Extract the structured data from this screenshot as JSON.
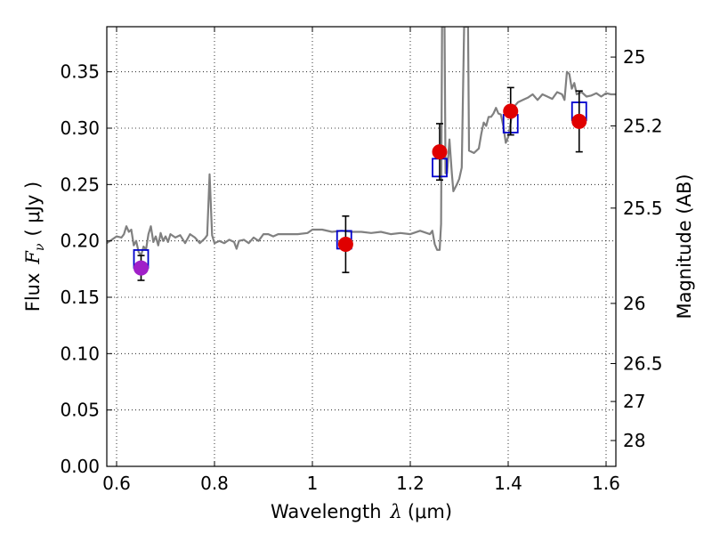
{
  "chart_data": {
    "type": "scatter",
    "xlabel": {
      "prefix": "Wavelength",
      "symbol": "λ",
      "unit": "(μm)"
    },
    "ylabel": {
      "prefix": "Flux",
      "symbol": "F",
      "sub": "ν",
      "unit": "( μJy )"
    },
    "ylabel_right": "Magnitude (AB)",
    "xlim": [
      0.58,
      1.62
    ],
    "ylim": [
      0.0,
      0.39
    ],
    "grid": true,
    "x_ticks": [
      {
        "v": 0.6,
        "label": "0.6"
      },
      {
        "v": 0.8,
        "label": "0.8"
      },
      {
        "v": 1.0,
        "label": "1"
      },
      {
        "v": 1.2,
        "label": "1.2"
      },
      {
        "v": 1.4,
        "label": "1.4"
      },
      {
        "v": 1.6,
        "label": "1.6"
      }
    ],
    "y_ticks": [
      {
        "v": 0.0,
        "label": "0.00"
      },
      {
        "v": 0.05,
        "label": "0.05"
      },
      {
        "v": 0.1,
        "label": "0.10"
      },
      {
        "v": 0.15,
        "label": "0.15"
      },
      {
        "v": 0.2,
        "label": "0.20"
      },
      {
        "v": 0.25,
        "label": "0.25"
      },
      {
        "v": 0.3,
        "label": "0.30"
      },
      {
        "v": 0.35,
        "label": "0.35"
      }
    ],
    "right_ticks": [
      {
        "mag": 25,
        "label": "25"
      },
      {
        "mag": 25.2,
        "label": "25.2"
      },
      {
        "mag": 25.5,
        "label": "25.5"
      },
      {
        "mag": 26,
        "label": "26"
      },
      {
        "mag": 26.5,
        "label": "26.5"
      },
      {
        "mag": 27,
        "label": "27"
      },
      {
        "mag": 28,
        "label": "28"
      }
    ],
    "spectrum": {
      "color": "#808080",
      "points": [
        [
          0.58,
          0.198
        ],
        [
          0.59,
          0.201
        ],
        [
          0.6,
          0.204
        ],
        [
          0.61,
          0.203
        ],
        [
          0.615,
          0.206
        ],
        [
          0.62,
          0.213
        ],
        [
          0.625,
          0.208
        ],
        [
          0.63,
          0.21
        ],
        [
          0.635,
          0.196
        ],
        [
          0.64,
          0.2
        ],
        [
          0.645,
          0.19
        ],
        [
          0.65,
          0.187
        ],
        [
          0.655,
          0.195
        ],
        [
          0.66,
          0.192
        ],
        [
          0.665,
          0.206
        ],
        [
          0.67,
          0.213
        ],
        [
          0.675,
          0.199
        ],
        [
          0.68,
          0.204
        ],
        [
          0.685,
          0.196
        ],
        [
          0.69,
          0.207
        ],
        [
          0.695,
          0.2
        ],
        [
          0.7,
          0.204
        ],
        [
          0.705,
          0.199
        ],
        [
          0.71,
          0.206
        ],
        [
          0.72,
          0.203
        ],
        [
          0.73,
          0.205
        ],
        [
          0.74,
          0.198
        ],
        [
          0.75,
          0.206
        ],
        [
          0.76,
          0.203
        ],
        [
          0.77,
          0.198
        ],
        [
          0.78,
          0.202
        ],
        [
          0.785,
          0.205
        ],
        [
          0.79,
          0.259
        ],
        [
          0.795,
          0.205
        ],
        [
          0.8,
          0.198
        ],
        [
          0.81,
          0.2
        ],
        [
          0.82,
          0.198
        ],
        [
          0.83,
          0.201
        ],
        [
          0.84,
          0.199
        ],
        [
          0.845,
          0.193
        ],
        [
          0.85,
          0.2
        ],
        [
          0.86,
          0.201
        ],
        [
          0.87,
          0.198
        ],
        [
          0.88,
          0.203
        ],
        [
          0.89,
          0.2
        ],
        [
          0.9,
          0.206
        ],
        [
          0.91,
          0.206
        ],
        [
          0.92,
          0.204
        ],
        [
          0.93,
          0.206
        ],
        [
          0.95,
          0.206
        ],
        [
          0.97,
          0.206
        ],
        [
          0.99,
          0.207
        ],
        [
          1.0,
          0.21
        ],
        [
          1.02,
          0.21
        ],
        [
          1.04,
          0.208
        ],
        [
          1.06,
          0.209
        ],
        [
          1.08,
          0.208
        ],
        [
          1.1,
          0.208
        ],
        [
          1.12,
          0.207
        ],
        [
          1.14,
          0.208
        ],
        [
          1.16,
          0.206
        ],
        [
          1.18,
          0.207
        ],
        [
          1.2,
          0.206
        ],
        [
          1.22,
          0.209
        ],
        [
          1.24,
          0.206
        ],
        [
          1.245,
          0.209
        ],
        [
          1.25,
          0.197
        ],
        [
          1.255,
          0.192
        ],
        [
          1.26,
          0.192
        ],
        [
          1.263,
          0.215
        ],
        [
          1.265,
          0.39
        ],
        [
          1.27,
          0.39
        ],
        [
          1.272,
          0.26
        ],
        [
          1.275,
          0.26
        ],
        [
          1.28,
          0.29
        ],
        [
          1.285,
          0.26
        ],
        [
          1.288,
          0.244
        ],
        [
          1.295,
          0.25
        ],
        [
          1.3,
          0.255
        ],
        [
          1.305,
          0.265
        ],
        [
          1.31,
          0.39
        ],
        [
          1.318,
          0.39
        ],
        [
          1.32,
          0.28
        ],
        [
          1.33,
          0.278
        ],
        [
          1.34,
          0.282
        ],
        [
          1.345,
          0.295
        ],
        [
          1.35,
          0.305
        ],
        [
          1.355,
          0.302
        ],
        [
          1.36,
          0.31
        ],
        [
          1.365,
          0.31
        ],
        [
          1.37,
          0.313
        ],
        [
          1.375,
          0.318
        ],
        [
          1.38,
          0.313
        ],
        [
          1.385,
          0.312
        ],
        [
          1.39,
          0.302
        ],
        [
          1.395,
          0.287
        ],
        [
          1.4,
          0.292
        ],
        [
          1.405,
          0.305
        ],
        [
          1.41,
          0.318
        ],
        [
          1.42,
          0.323
        ],
        [
          1.43,
          0.325
        ],
        [
          1.44,
          0.327
        ],
        [
          1.45,
          0.33
        ],
        [
          1.46,
          0.325
        ],
        [
          1.47,
          0.33
        ],
        [
          1.48,
          0.328
        ],
        [
          1.49,
          0.326
        ],
        [
          1.5,
          0.332
        ],
        [
          1.51,
          0.33
        ],
        [
          1.515,
          0.325
        ],
        [
          1.52,
          0.35
        ],
        [
          1.525,
          0.348
        ],
        [
          1.53,
          0.335
        ],
        [
          1.535,
          0.34
        ],
        [
          1.54,
          0.33
        ],
        [
          1.55,
          0.332
        ],
        [
          1.56,
          0.328
        ],
        [
          1.57,
          0.329
        ],
        [
          1.58,
          0.331
        ],
        [
          1.59,
          0.328
        ],
        [
          1.6,
          0.331
        ],
        [
          1.61,
          0.33
        ],
        [
          1.62,
          0.33
        ]
      ]
    },
    "model_points": {
      "marker": "square",
      "color": "#0000cc",
      "points": [
        [
          0.65,
          0.184
        ],
        [
          1.065,
          0.201
        ],
        [
          1.26,
          0.265
        ],
        [
          1.405,
          0.304
        ],
        [
          1.545,
          0.315
        ]
      ]
    },
    "observed_points": {
      "marker": "circle",
      "points": [
        {
          "x": 0.65,
          "y": 0.176,
          "err": 0.011,
          "color": "#a020c8"
        },
        {
          "x": 1.068,
          "y": 0.197,
          "err": 0.025,
          "color": "#e00000"
        },
        {
          "x": 1.26,
          "y": 0.279,
          "err": 0.025,
          "color": "#e00000"
        },
        {
          "x": 1.405,
          "y": 0.315,
          "err": 0.021,
          "color": "#e00000"
        },
        {
          "x": 1.545,
          "y": 0.306,
          "err": 0.027,
          "color": "#e00000"
        }
      ]
    }
  }
}
